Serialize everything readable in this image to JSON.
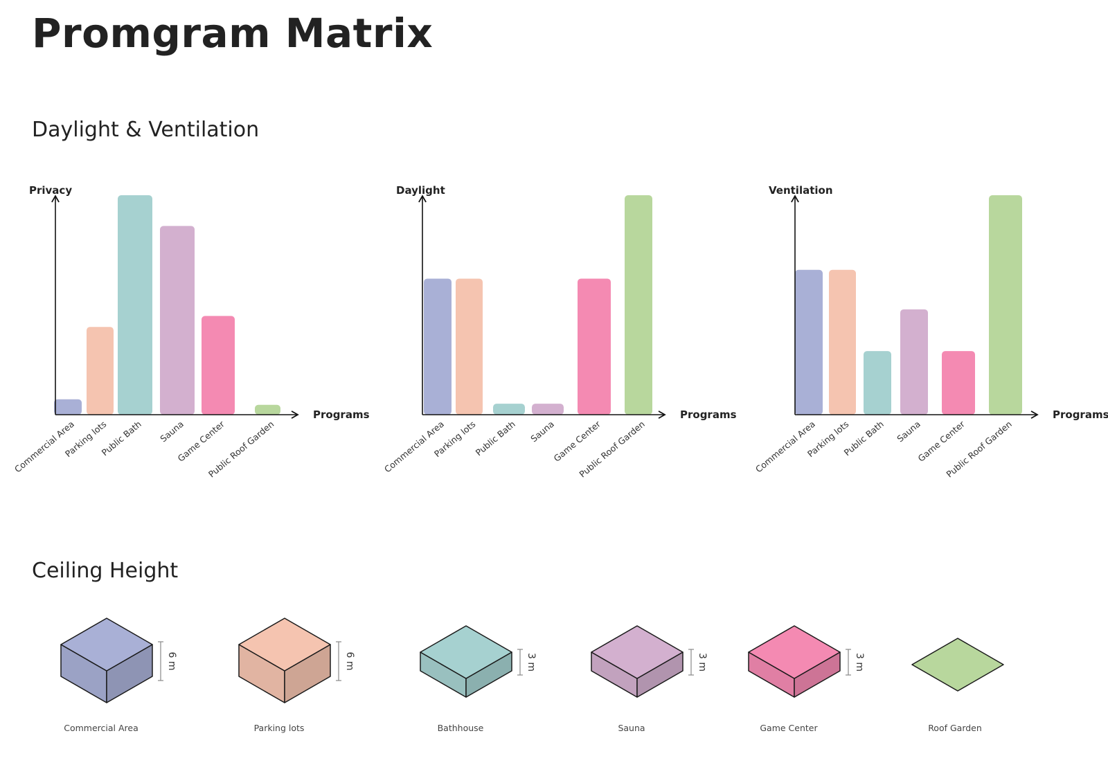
{
  "title": "Promgram Matrix",
  "sections": {
    "daylight_ventilation": "Daylight & Ventilation",
    "ceiling_height": "Ceiling Height"
  },
  "colors": {
    "Commercial Area": "#a9b0d6",
    "Parking lots": "#f5c4b0",
    "Public Bath": "#a6d1d0",
    "Sauna": "#d3b0cf",
    "Game Center": "#f48ab2",
    "Public Roof Garden": "#b8d79d"
  },
  "chart_data": [
    {
      "type": "bar",
      "ylabel": "Privacy",
      "xlabel": "Programs",
      "categories": [
        "Commercial Area",
        "Parking lots",
        "Public Bath",
        "Sauna",
        "Game Center",
        "Public Roof Garden"
      ],
      "values": [
        7,
        40,
        100,
        86,
        45,
        4.5
      ],
      "ylim": [
        0,
        100
      ]
    },
    {
      "type": "bar",
      "ylabel": "Daylight",
      "xlabel": "Programs",
      "categories": [
        "Commercial Area",
        "Parking lots",
        "Public Bath",
        "Sauna",
        "Game Center",
        "Public Roof Garden"
      ],
      "values": [
        62,
        62,
        5,
        5,
        62,
        100
      ],
      "ylim": [
        0,
        100
      ]
    },
    {
      "type": "bar",
      "ylabel": "Ventilation",
      "xlabel": "Programs",
      "categories": [
        "Commercial Area",
        "Parking lots",
        "Public Bath",
        "Sauna",
        "Game Center",
        "Public Roof Garden"
      ],
      "values": [
        66,
        66,
        29,
        48,
        29,
        100
      ],
      "ylim": [
        0,
        100
      ]
    }
  ],
  "ceiling": [
    {
      "label": "Commercial Area",
      "height": "6 m",
      "color": "#a9b0d6"
    },
    {
      "label": "Parking lots",
      "height": "6 m",
      "color": "#f5c4b0"
    },
    {
      "label": "Bathhouse",
      "height": "3 m",
      "color": "#a6d1d0"
    },
    {
      "label": "Sauna",
      "height": "3 m",
      "color": "#d3b0cf"
    },
    {
      "label": "Game Center",
      "height": "3 m",
      "color": "#f48ab2"
    },
    {
      "label": "Roof Garden",
      "height": "",
      "color": "#b8d79d"
    }
  ]
}
